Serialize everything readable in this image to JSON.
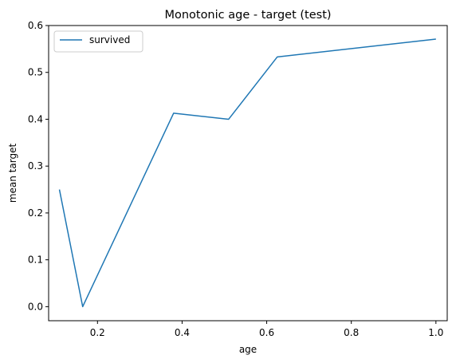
{
  "chart_data": {
    "type": "line",
    "title": "Monotonic age - target (test)",
    "xlabel": "age",
    "ylabel": "mean target",
    "xlim": [
      0.0845,
      1.0267
    ],
    "ylim": [
      -0.03,
      0.6
    ],
    "xticks": [
      0.2,
      0.4,
      0.6,
      0.8,
      1.0
    ],
    "xtick_labels": [
      "0.2",
      "0.4",
      "0.6",
      "0.8",
      "1.0"
    ],
    "yticks": [
      0.0,
      0.1,
      0.2,
      0.3,
      0.4,
      0.5,
      0.6
    ],
    "ytick_labels": [
      "0.0",
      "0.1",
      "0.2",
      "0.3",
      "0.4",
      "0.5",
      "0.6"
    ],
    "grid": false,
    "legend_position": "top-left",
    "series": [
      {
        "name": "survived",
        "color": "#1f77b4",
        "x": [
          0.11,
          0.165,
          0.38,
          0.51,
          0.625,
          1.0
        ],
        "y": [
          0.25,
          0.0,
          0.413,
          0.4,
          0.533,
          0.571
        ]
      }
    ]
  }
}
